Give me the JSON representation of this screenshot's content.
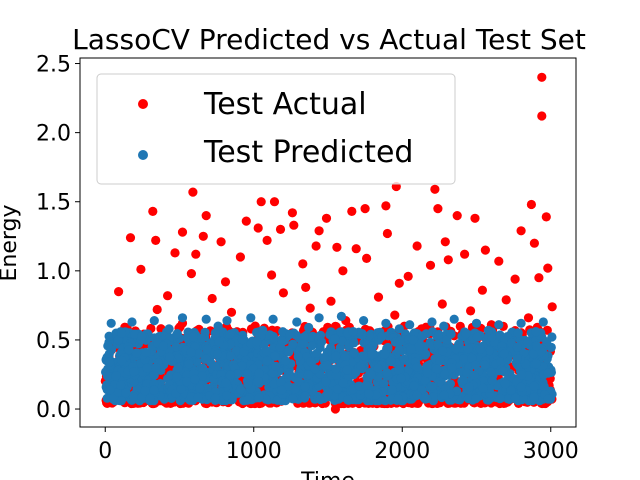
{
  "chart_data": {
    "type": "scatter",
    "title": "LassoCV Predicted vs Actual Test Set",
    "xlabel": "Time",
    "ylabel": "Energy",
    "xlim": [
      -170,
      3170
    ],
    "ylim": [
      -0.13,
      2.54
    ],
    "xticks": [
      0,
      1000,
      2000,
      3000
    ],
    "xtick_labels": [
      "0",
      "1000",
      "2000",
      "3000"
    ],
    "yticks": [
      0.0,
      0.5,
      1.0,
      1.5,
      2.0,
      2.5
    ],
    "ytick_labels": [
      "0.0",
      "0.5",
      "1.0",
      "1.5",
      "2.0",
      "2.5"
    ],
    "grid": false,
    "legend_position": "upper-left",
    "colors": {
      "actual": "#ff0000",
      "predicted": "#1f77b4"
    },
    "series": [
      {
        "name": "Test Actual",
        "color": "#ff0000",
        "x": [
          2940,
          2940,
          320,
          2220,
          590,
          1050,
          1140,
          1960,
          2240,
          1660,
          1260,
          2370,
          2490,
          1750,
          680,
          1890,
          950,
          2870,
          1270,
          1490,
          2970,
          1030,
          340,
          520,
          660,
          1180,
          1440,
          1900,
          2800,
          1090,
          1420,
          1560,
          780,
          2100,
          2290,
          2560,
          2890,
          610,
          1690,
          2310,
          170,
          470,
          910,
          1330,
          1760,
          2420,
          2650,
          2980,
          240,
          580,
          1120,
          1600,
          2040,
          2190,
          2760,
          810,
          1350,
          1980,
          2540,
          2920,
          90,
          420,
          720,
          1200,
          1520,
          1840,
          2270,
          2700,
          3010,
          350,
          850,
          1380,
          1950,
          2460,
          2850,
          520,
          1010,
          1620,
          2130,
          2600,
          150,
          630,
          1220,
          1790,
          2350,
          2910,
          1550
        ],
        "y": [
          2.4,
          2.12,
          1.43,
          1.59,
          1.57,
          1.5,
          1.5,
          1.61,
          1.45,
          1.43,
          1.42,
          1.4,
          1.38,
          1.45,
          1.4,
          1.47,
          1.36,
          1.48,
          1.33,
          1.38,
          1.39,
          1.31,
          1.22,
          1.28,
          1.25,
          1.3,
          1.29,
          1.27,
          1.29,
          1.22,
          1.18,
          1.17,
          1.21,
          1.18,
          1.21,
          1.15,
          1.2,
          1.12,
          1.16,
          1.08,
          1.24,
          1.13,
          1.1,
          1.05,
          1.09,
          1.12,
          1.07,
          1.02,
          1.01,
          0.98,
          0.97,
          1.0,
          0.96,
          1.04,
          0.94,
          0.92,
          0.88,
          0.91,
          0.86,
          0.95,
          0.85,
          0.82,
          0.8,
          0.84,
          0.78,
          0.81,
          0.76,
          0.79,
          0.74,
          0.72,
          0.7,
          0.73,
          0.68,
          0.71,
          0.66,
          0.62,
          0.6,
          0.64,
          0.58,
          0.61,
          0.55,
          0.52,
          0.54,
          0.5,
          0.53,
          0.48,
          0.0
        ]
      },
      {
        "name": "Test Predicted",
        "color": "#1f77b4",
        "x": [
          40,
          180,
          330,
          520,
          680,
          820,
          980,
          1130,
          1290,
          1440,
          1590,
          1740,
          1890,
          2050,
          2200,
          2350,
          2500,
          2650,
          2800,
          2950,
          110,
          430,
          760,
          1060,
          1370,
          1670,
          1980,
          2280,
          2580,
          2900
        ],
        "y": [
          0.62,
          0.63,
          0.64,
          0.66,
          0.65,
          0.64,
          0.66,
          0.65,
          0.63,
          0.66,
          0.67,
          0.64,
          0.62,
          0.61,
          0.63,
          0.65,
          0.62,
          0.61,
          0.62,
          0.63,
          0.55,
          0.58,
          0.6,
          0.57,
          0.59,
          0.56,
          0.58,
          0.6,
          0.57,
          0.56
        ]
      }
    ],
    "dense_band": {
      "x_min": 0,
      "x_max": 3010,
      "actual_y_min": 0.04,
      "actual_y_max": 0.6,
      "predicted_y_min": 0.06,
      "predicted_y_max": 0.56,
      "actual_count": 1300,
      "predicted_count": 1700
    }
  }
}
